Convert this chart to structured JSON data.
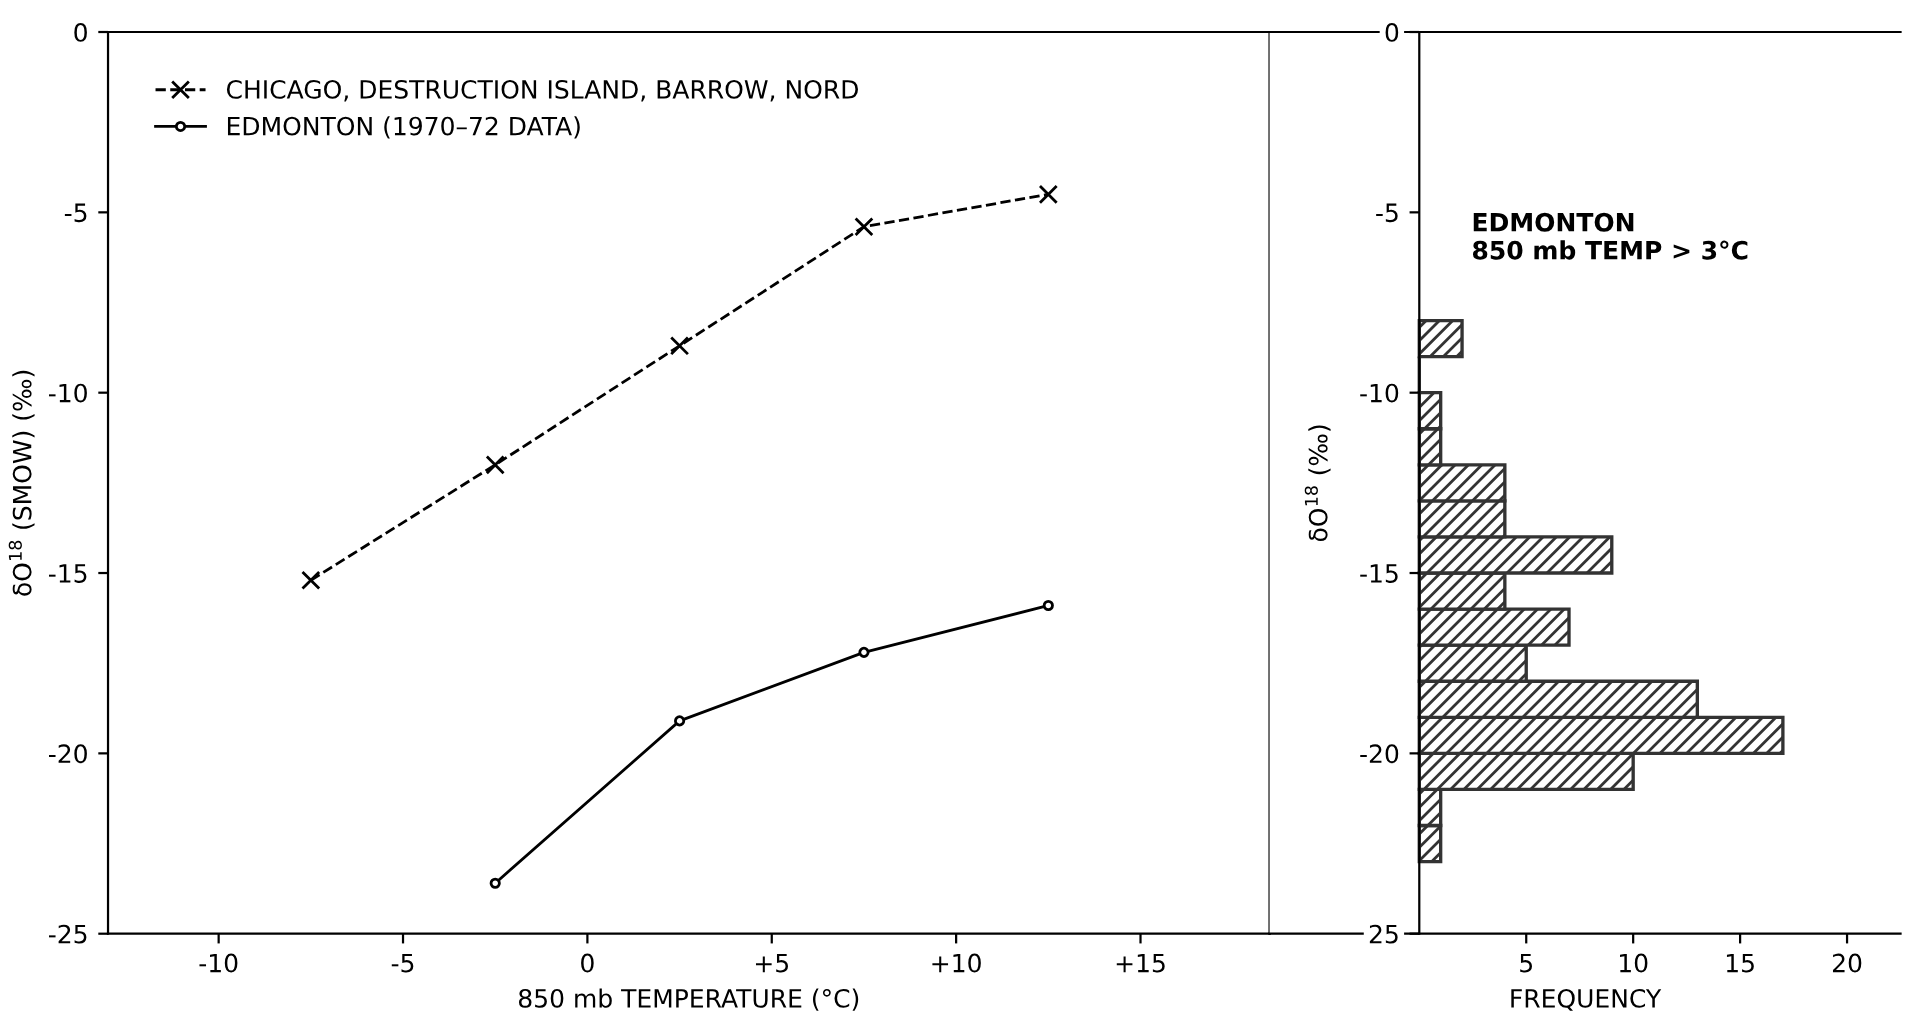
{
  "chart_data": [
    {
      "type": "line",
      "xlabel": "850 mb TEMPERATURE (°C)",
      "ylabel": "δO$^{18}$ (SMOW) (‰)",
      "xlim": [
        -13,
        18.5
      ],
      "xticks": [
        -10,
        -5,
        0,
        {
          "value": 5,
          "label": "+5"
        },
        {
          "value": 10,
          "label": "+10"
        },
        {
          "value": 15,
          "label": "+15"
        }
      ],
      "ylim": [
        -25,
        0
      ],
      "yticks": [
        0,
        -5,
        -10,
        -15,
        -20,
        -25
      ],
      "grid": false,
      "legend": "top left",
      "series": [
        {
          "name": "CHICAGO, DESTRUCTION ISLAND, BARROW, NORD",
          "color": "#000000",
          "marker": "cross",
          "line_style": "dashed",
          "x": [
            -7.5,
            -2.5,
            2.5,
            7.5,
            12.5
          ],
          "values": [
            -15.2,
            -12.0,
            -8.7,
            -5.4,
            -4.5
          ]
        },
        {
          "name": "EDMONTON (1970–72 DATA)",
          "color": "#000000",
          "marker": "circle",
          "line_style": "solid",
          "x": [
            -2.5,
            2.5,
            7.5,
            12.5
          ],
          "values": [
            -23.6,
            -19.1,
            -17.2,
            -15.9
          ]
        }
      ]
    },
    {
      "type": "histogram",
      "orientation": "horizontal",
      "xlabel": "FREQUENCY",
      "ylabel": "δO$^{18}$ (‰)",
      "color": "#333333",
      "annotations": [
        "EDMONTON\n850 mb TEMP > 3°C"
      ],
      "bins": [
        -23,
        -22,
        -21,
        -20,
        -19,
        -18,
        -17,
        -16,
        -15,
        -14,
        -13,
        -12,
        -11,
        -10,
        -9,
        -8
      ],
      "values": [
        1,
        1,
        10,
        17,
        13,
        5,
        7,
        4,
        9,
        4,
        4,
        1,
        1,
        0,
        2
      ],
      "xlim": [
        -7,
        22.5
      ],
      "xticks": [
        5,
        10,
        15,
        20
      ],
      "ylim": [
        -25,
        0
      ],
      "yticks": [
        {
          "value": -25,
          "label": "25"
        },
        -20,
        -15,
        -10,
        -5,
        0
      ],
      "grid": false
    }
  ]
}
